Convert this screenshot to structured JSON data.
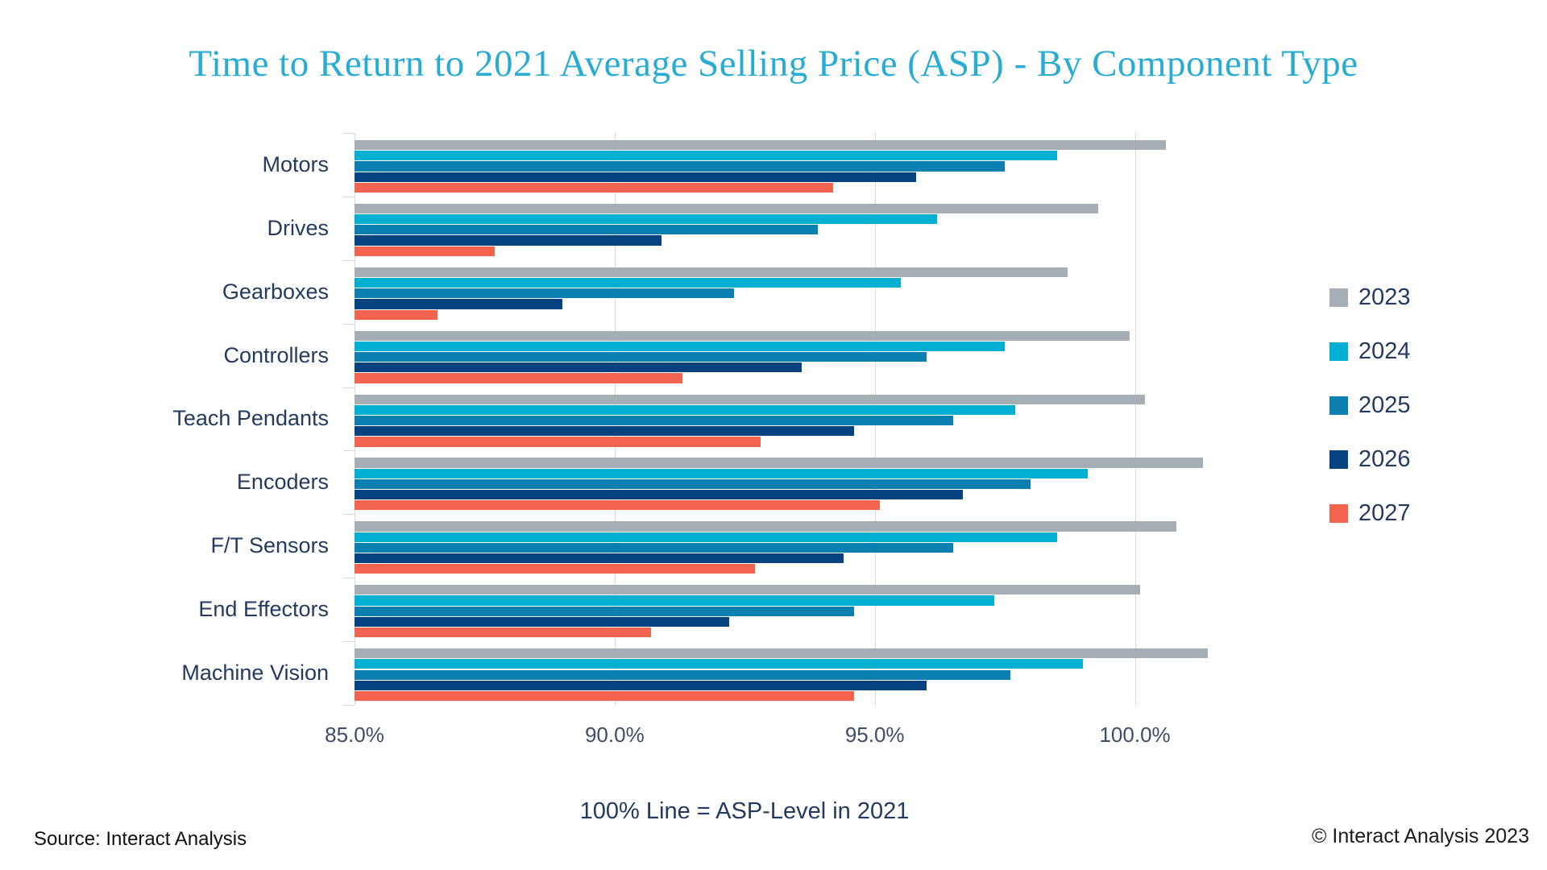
{
  "title": "Time to Return to 2021 Average Selling Price (ASP) - By Component Type",
  "note": "100% Line = ASP-Level in 2021",
  "source": "Source: Interact Analysis",
  "copyright": "© Interact Analysis 2023",
  "colors": {
    "title": "#29ACD4",
    "dark_text": "#243A5E",
    "tick_text": "#3E4D66",
    "grid": "#D9D9D9",
    "series_2023": "#A5ADB5",
    "series_2024": "#00AFD2",
    "series_2025": "#0A7FB0",
    "series_2026": "#064180",
    "series_2027": "#F26350"
  },
  "chart_data": {
    "type": "bar",
    "orientation": "horizontal",
    "title": "Time to Return to 2021 Average Selling Price (ASP) - By Component Type",
    "xlabel": "",
    "ylabel": "",
    "grid": true,
    "legend_position": "right",
    "axis": {
      "min": 85,
      "max": 102.5,
      "unit": "%",
      "ticks": [
        {
          "value": 85,
          "label": "85.0%"
        },
        {
          "value": 90,
          "label": "90.0%"
        },
        {
          "value": 95,
          "label": "95.0%"
        },
        {
          "value": 100,
          "label": "100.0%"
        }
      ]
    },
    "categories": [
      "Motors",
      "Drives",
      "Gearboxes",
      "Controllers",
      "Teach Pendants",
      "Encoders",
      "F/T Sensors",
      "End Effectors",
      "Machine Vision"
    ],
    "series": [
      {
        "name": "2023",
        "color": "#A5ADB5",
        "values": [
          100.6,
          99.3,
          98.7,
          99.9,
          100.2,
          101.3,
          100.8,
          100.1,
          101.4
        ]
      },
      {
        "name": "2024",
        "color": "#00AFD2",
        "values": [
          98.5,
          96.2,
          95.5,
          97.5,
          97.7,
          99.1,
          98.5,
          97.3,
          99.0
        ]
      },
      {
        "name": "2025",
        "color": "#0A7FB0",
        "values": [
          97.5,
          93.9,
          92.3,
          96.0,
          96.5,
          98.0,
          96.5,
          94.6,
          97.6
        ]
      },
      {
        "name": "2026",
        "color": "#064180",
        "values": [
          95.8,
          90.9,
          89.0,
          93.6,
          94.6,
          96.7,
          94.4,
          92.2,
          96.0
        ]
      },
      {
        "name": "2027",
        "color": "#F26350",
        "values": [
          94.2,
          87.7,
          86.6,
          91.3,
          92.8,
          95.1,
          92.7,
          90.7,
          94.6
        ]
      }
    ]
  }
}
